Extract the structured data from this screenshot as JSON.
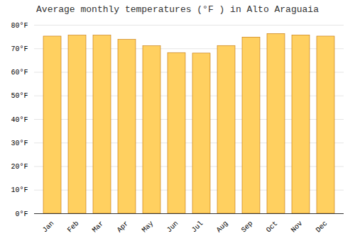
{
  "chart_data": {
    "type": "bar",
    "title": "Average monthly temperatures (°F ) in Alto Araguaia",
    "categories": [
      "Jan",
      "Feb",
      "Mar",
      "Apr",
      "May",
      "Jun",
      "Jul",
      "Aug",
      "Sep",
      "Oct",
      "Nov",
      "Dec"
    ],
    "values": [
      75.2,
      75.6,
      75.6,
      73.8,
      71.1,
      68.2,
      68.0,
      71.2,
      74.8,
      76.3,
      75.7,
      75.2
    ],
    "color": "#FFD060",
    "ylim": [
      0,
      80
    ],
    "yticks": [
      {
        "value": 0,
        "label": "0°F"
      },
      {
        "value": 10,
        "label": "10°F"
      },
      {
        "value": 20,
        "label": "20°F"
      },
      {
        "value": 30,
        "label": "30°F"
      },
      {
        "value": 40,
        "label": "40°F"
      },
      {
        "value": 50,
        "label": "50°F"
      },
      {
        "value": 60,
        "label": "60°F"
      },
      {
        "value": 70,
        "label": "70°F"
      },
      {
        "value": 80,
        "label": "80°F"
      }
    ],
    "grid": true
  }
}
